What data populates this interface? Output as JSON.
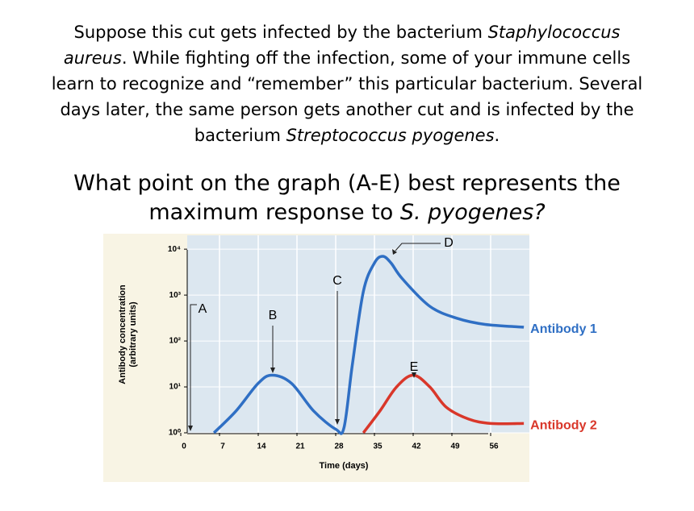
{
  "paragraph": [
    "Suppose this cut gets infected by the bacterium ",
    "Staphylococcus aureus",
    ". While fighting off the infection, some of your immune cells learn to recognize and “remember” this particular bacterium. Several days later, the same person gets another cut and is infected by the bacterium ",
    "Streptococcus pyogenes",
    "."
  ],
  "question": [
    "What point on the graph (A-E) best represents the maximum response to ",
    "S. pyogenes?"
  ],
  "chart_data": {
    "type": "line",
    "log_y": true,
    "grid": true,
    "x_label": "Time (days)",
    "y_label": [
      "Antibody concentration",
      "(arbitrary units)"
    ],
    "xlim": [
      0,
      63
    ],
    "xticks": [
      0,
      7,
      14,
      21,
      28,
      35,
      42,
      49,
      56
    ],
    "ylim": [
      1,
      20000
    ],
    "yticks": [
      {
        "value": 1,
        "label": "10⁰"
      },
      {
        "value": 10,
        "label": "10¹"
      },
      {
        "value": 100,
        "label": "10²"
      },
      {
        "value": 1000,
        "label": "10³"
      },
      {
        "value": 10000,
        "label": "10⁴"
      }
    ],
    "series": [
      {
        "name": "Antibody 1",
        "color": "#2f6fc4",
        "x": [
          6,
          10,
          14,
          16.5,
          20,
          24,
          28,
          29.5,
          31,
          33,
          35,
          36.5,
          38,
          40,
          45,
          50,
          55,
          62
        ],
        "values": [
          1,
          3,
          12,
          18,
          12,
          3,
          1.2,
          1.3,
          30,
          1200,
          5000,
          7000,
          5000,
          2300,
          570,
          310,
          230,
          200
        ]
      },
      {
        "name": "Antibody 2",
        "color": "#d9372a",
        "x": [
          33,
          36,
          39,
          42,
          45,
          48,
          52,
          56,
          62
        ],
        "values": [
          1,
          3,
          10,
          18,
          10,
          3.6,
          2,
          1.6,
          1.6
        ]
      }
    ],
    "annotations": [
      "A",
      "B",
      "C",
      "D",
      "E"
    ]
  }
}
